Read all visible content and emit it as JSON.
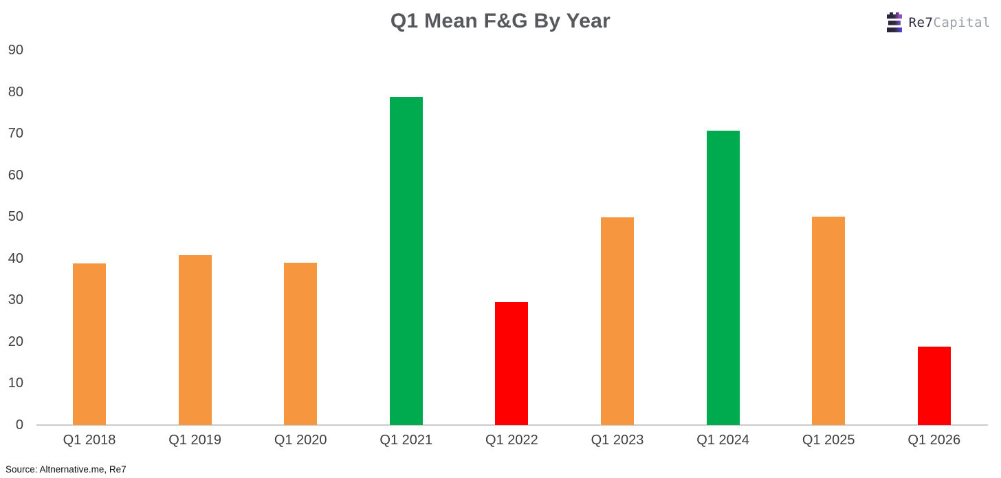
{
  "logo": {
    "primary": "Re7",
    "secondary": "Capital",
    "icon": "re7-three-bars-castle-icon"
  },
  "source_note": "Source: Altnernative.me, Re7",
  "colors": {
    "neutral_orange": "#F6973F",
    "greed_green": "#00AB4F",
    "fear_red": "#FF0000",
    "axis_line": "#CBCBCB",
    "title_text": "#57585B",
    "tick_text": "#3E3E40",
    "brand_dark": "#2E2942",
    "brand_gray": "#9DA2A8"
  },
  "chart_data": {
    "type": "bar",
    "title": "Q1 Mean F&G By Year",
    "categories": [
      "Q1 2018",
      "Q1 2019",
      "Q1 2020",
      "Q1 2021",
      "Q1 2022",
      "Q1 2023",
      "Q1 2024",
      "Q1 2025",
      "Q1 2026"
    ],
    "values": [
      38.8,
      40.8,
      39.0,
      78.8,
      29.6,
      49.9,
      70.7,
      50.0,
      18.8
    ],
    "bar_colors": [
      "#F6973F",
      "#F6973F",
      "#F6973F",
      "#00AB4F",
      "#FF0000",
      "#F6973F",
      "#00AB4F",
      "#F6973F",
      "#FF0000"
    ],
    "xlabel": "",
    "ylabel": "",
    "ylim": [
      0,
      90
    ],
    "yticks": [
      0,
      10,
      20,
      30,
      40,
      50,
      60,
      70,
      80,
      90
    ],
    "grid": false,
    "legend": false
  }
}
